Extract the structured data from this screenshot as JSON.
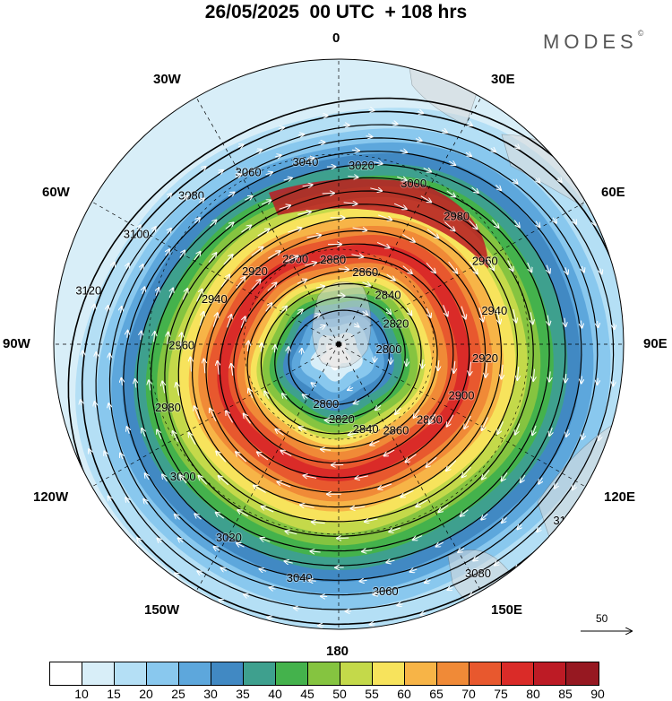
{
  "header": {
    "title": "26/05/2025  00 UTC  + 108 hrs",
    "brand": "MODES",
    "brand_mark": "©"
  },
  "map": {
    "projection": "polar stereographic (south pole)",
    "longitude_labels": [
      "0",
      "30E",
      "60E",
      "90E",
      "120E",
      "150E",
      "180",
      "150W",
      "120W",
      "90W",
      "60W",
      "30W"
    ],
    "contour_labels": [
      "3120",
      "3100",
      "3080",
      "3060",
      "3040",
      "3020",
      "3000",
      "2980",
      "2960",
      "2940",
      "2920",
      "2900",
      "2880",
      "2860",
      "2840",
      "2820",
      "2800"
    ],
    "reference_vector_label": "50"
  },
  "colorbar": {
    "colors": [
      "#ffffff",
      "#d8eef8",
      "#b4dff5",
      "#89c8ee",
      "#5da7dc",
      "#4189c3",
      "#3ea08e",
      "#44b24c",
      "#85c440",
      "#c4d94a",
      "#f7e35c",
      "#f7b447",
      "#f08a37",
      "#e8582e",
      "#da2b28",
      "#bd1b25",
      "#961821"
    ],
    "ticks": [
      "10",
      "15",
      "20",
      "25",
      "30",
      "35",
      "40",
      "45",
      "50",
      "55",
      "60",
      "65",
      "70",
      "75",
      "80",
      "85",
      "90"
    ]
  }
}
